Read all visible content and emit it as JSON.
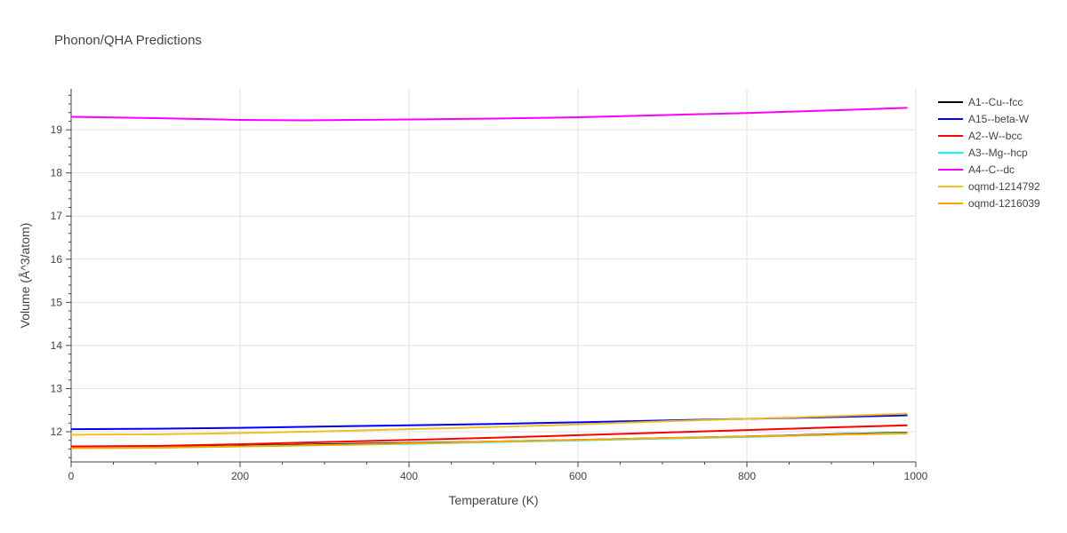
{
  "chart_data": {
    "type": "line",
    "title": "Phonon/QHA Predictions",
    "xlabel": "Temperature (K)",
    "ylabel": "Volume (Å^3/atom)",
    "xlim": [
      0,
      1000
    ],
    "ylim": [
      11.3,
      19.95
    ],
    "xticks": [
      0,
      200,
      400,
      600,
      800,
      1000
    ],
    "yticks": [
      12,
      13,
      14,
      15,
      16,
      17,
      18,
      19
    ],
    "grid": true,
    "legend_position": "right",
    "series": [
      {
        "name": "A1--Cu--fcc",
        "color": "#000000",
        "x": [
          0,
          100,
          200,
          300,
          400,
          500,
          600,
          700,
          800,
          900,
          990
        ],
        "y": [
          11.63,
          11.64,
          11.67,
          11.71,
          11.74,
          11.77,
          11.81,
          11.85,
          11.89,
          11.94,
          11.98
        ]
      },
      {
        "name": "A15--beta-W",
        "color": "#0000ff",
        "x": [
          0,
          100,
          200,
          300,
          400,
          500,
          600,
          700,
          800,
          900,
          990
        ],
        "y": [
          12.06,
          12.07,
          12.09,
          12.12,
          12.15,
          12.18,
          12.22,
          12.26,
          12.3,
          12.34,
          12.38
        ]
      },
      {
        "name": "A2--W--bcc",
        "color": "#ff0000",
        "x": [
          0,
          100,
          200,
          300,
          400,
          500,
          600,
          700,
          800,
          900,
          990
        ],
        "y": [
          11.66,
          11.67,
          11.71,
          11.76,
          11.81,
          11.86,
          11.92,
          11.98,
          12.04,
          12.1,
          12.15
        ]
      },
      {
        "name": "A3--Mg--hcp",
        "color": "#00ffff",
        "x": [
          0,
          100,
          200,
          300,
          400,
          500,
          600,
          700,
          800,
          900,
          990
        ],
        "y": [
          11.62,
          11.63,
          11.66,
          11.69,
          11.72,
          11.76,
          11.8,
          11.84,
          11.88,
          11.93,
          11.97
        ]
      },
      {
        "name": "A4--C--dc",
        "color": "#ff00ff",
        "x": [
          0,
          100,
          200,
          275,
          400,
          500,
          600,
          700,
          800,
          900,
          990
        ],
        "y": [
          19.3,
          19.27,
          19.23,
          19.22,
          19.24,
          19.26,
          19.29,
          19.34,
          19.39,
          19.45,
          19.51
        ]
      },
      {
        "name": "oqmd-1214792",
        "color": "#f0c020",
        "x": [
          0,
          100,
          200,
          300,
          400,
          500,
          600,
          700,
          800,
          900,
          990
        ],
        "y": [
          11.93,
          11.94,
          11.97,
          12.01,
          12.06,
          12.11,
          12.17,
          12.24,
          12.3,
          12.36,
          12.42
        ]
      },
      {
        "name": "oqmd-1216039",
        "color": "#ffa500",
        "x": [
          0,
          100,
          200,
          300,
          400,
          500,
          600,
          700,
          800,
          900,
          990
        ],
        "y": [
          11.62,
          11.63,
          11.66,
          11.69,
          11.73,
          11.77,
          11.81,
          11.85,
          11.89,
          11.93,
          11.96
        ]
      }
    ]
  }
}
